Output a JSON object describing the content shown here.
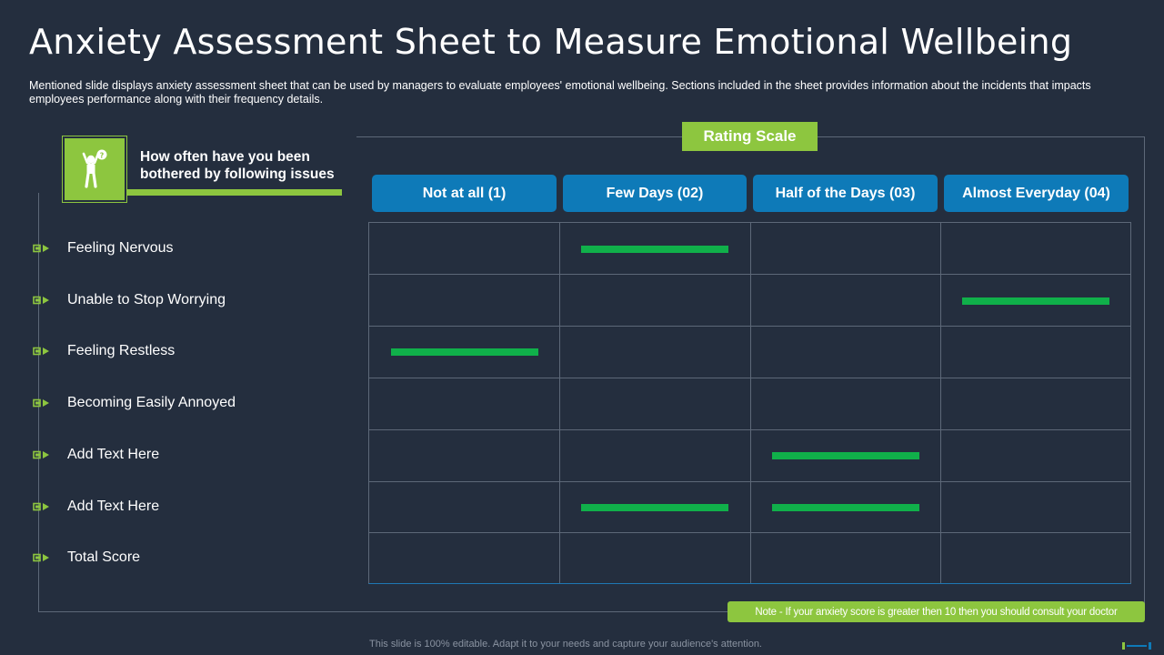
{
  "title": "Anxiety Assessment Sheet to Measure Emotional Wellbeing",
  "subtitle": "Mentioned slide displays anxiety assessment sheet that can be used by managers to evaluate employees' emotional wellbeing. Sections included in the sheet provides information about the incidents that impacts employees performance along with their frequency details.",
  "question": {
    "line1": "How often have you been",
    "line2": "bothered by following issues",
    "icon": "stressed-person-icon"
  },
  "rating_scale_label": "Rating Scale",
  "columns": [
    {
      "label": "Not at all (1)"
    },
    {
      "label": "Few Days (02)"
    },
    {
      "label": "Half of the Days (03)"
    },
    {
      "label": "Almost Everyday (04)"
    }
  ],
  "rows": [
    {
      "label": "Feeling Nervous",
      "marked": [
        1
      ]
    },
    {
      "label": "Unable to Stop Worrying",
      "marked": [
        3
      ]
    },
    {
      "label": "Feeling Restless",
      "marked": [
        0
      ]
    },
    {
      "label": "Becoming Easily Annoyed",
      "marked": []
    },
    {
      "label": "Add Text Here",
      "marked": [
        2
      ]
    },
    {
      "label": "Add Text Here",
      "marked": [
        1,
        2
      ]
    },
    {
      "label": "Total Score",
      "marked": []
    }
  ],
  "note": "Note - If your anxiety score is greater then 10 then you should consult your doctor",
  "footer": "This slide is 100% editable. Adapt it to your needs and capture your audience's attention.",
  "colors": {
    "background": "#242e3e",
    "accent_green": "#8dc63f",
    "header_blue": "#0e7ab8",
    "mark_green": "#10b04a"
  }
}
